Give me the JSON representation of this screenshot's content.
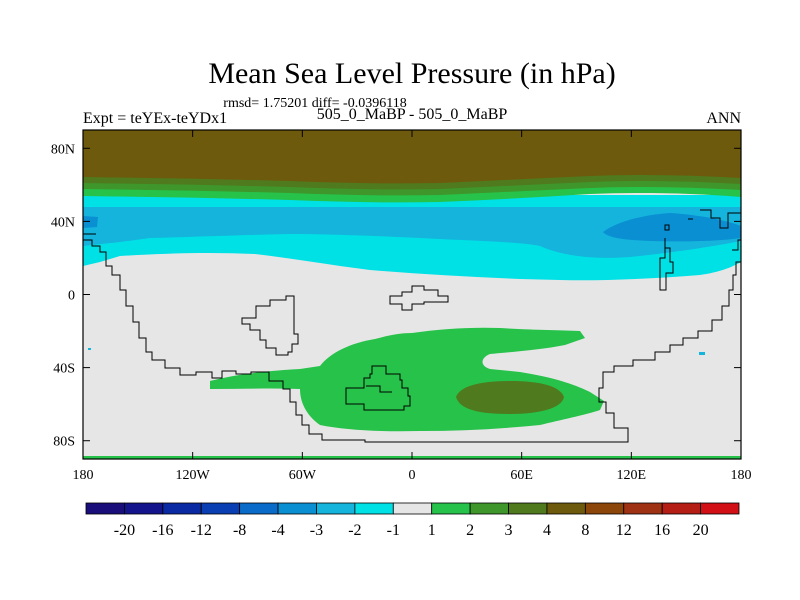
{
  "chart_data": {
    "type": "heatmap",
    "title": "Mean Sea Level Pressure (in hPa)",
    "stats_line": "rmsd= 1.75201 diff= -0.0396118",
    "left_label": "Expt = teYEx-teYDx1",
    "center_label": "505_0_MaBP - 505_0_MaBP",
    "right_label": "ANN",
    "x_axis": {
      "range": [
        -180,
        180
      ],
      "ticks": [
        -180,
        -120,
        -60,
        0,
        60,
        120,
        180
      ],
      "tick_labels": [
        "180",
        "120W",
        "60W",
        "0",
        "60E",
        "120E",
        "180"
      ]
    },
    "y_axis": {
      "range": [
        -90,
        90
      ],
      "ticks": [
        80,
        40,
        0,
        -40,
        -80
      ],
      "tick_labels": [
        "80N",
        "40N",
        "0",
        "40S",
        "80S"
      ]
    },
    "colorbar": {
      "labels": [
        "-20",
        "-16",
        "-12",
        "-8",
        "-4",
        "-3",
        "-2",
        "-1",
        "1",
        "2",
        "3",
        "4",
        "8",
        "12",
        "16",
        "20"
      ],
      "colors": [
        "#1a0f7a",
        "#14148c",
        "#0a2aa3",
        "#0a3fb4",
        "#0a6bc8",
        "#0a8fd2",
        "#14b4dc",
        "#00e1e6",
        "#e6e6e6",
        "#26c24a",
        "#3f962a",
        "#4f7a1e",
        "#6e5a0c",
        "#8c460a",
        "#a03214",
        "#b41e14",
        "#d20f14"
      ]
    },
    "regions": [
      {
        "name": "north-polar-high",
        "value_range": [
          4,
          8
        ],
        "lon": [
          -180,
          180
        ],
        "lat": [
          60,
          90
        ]
      },
      {
        "name": "northern-mid-latitude-low",
        "value_range": [
          -3,
          -2
        ],
        "lon": [
          -180,
          180
        ],
        "lat": [
          13,
          35
        ]
      },
      {
        "name": "north-pacific-low-core",
        "value_range": [
          -4,
          -3
        ],
        "lon": [
          105,
          165
        ],
        "lat": [
          30,
          43
        ]
      },
      {
        "name": "southern-positive-anomaly",
        "value_range": [
          1,
          2
        ],
        "lon": [
          -110,
          105
        ],
        "lat": [
          -80,
          -20
        ]
      },
      {
        "name": "southern-ocean-high-core",
        "value_range": [
          3,
          4
        ],
        "lon": [
          20,
          85
        ],
        "lat": [
          -67,
          -55
        ]
      }
    ]
  }
}
